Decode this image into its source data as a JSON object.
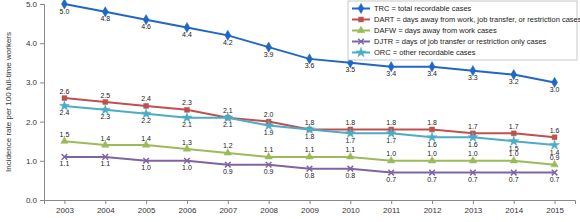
{
  "chart_data": {
    "type": "line",
    "y_label": "Incidence rate per 100 full-time workers",
    "categories": [
      "2003",
      "2004",
      "2005",
      "2006",
      "2007",
      "2008",
      "2009",
      "2010",
      "2011",
      "2012",
      "2013",
      "2014",
      "2015"
    ],
    "ylim": [
      0,
      5
    ],
    "yticks": [
      {
        "value": 0,
        "label": "0.0"
      },
      {
        "value": 1,
        "label": "1.0"
      },
      {
        "value": 2,
        "label": "2.0"
      },
      {
        "value": 3,
        "label": "3.0"
      },
      {
        "value": 4,
        "label": "4.0"
      },
      {
        "value": 5,
        "label": "5.0"
      }
    ],
    "grid": false,
    "legend": "upper right",
    "data_labels": true,
    "series": [
      {
        "name": "TRC = total recordable cases",
        "color": "#2167c4",
        "marker": "diamond",
        "values": [
          5.0,
          4.8,
          4.6,
          4.4,
          4.2,
          3.9,
          3.6,
          3.5,
          3.4,
          3.4,
          3.3,
          3.2,
          3.0
        ],
        "value_labels": [
          "5.0",
          "4.8",
          "4.6",
          "4.4",
          "4.2",
          "3.9",
          "3.6",
          "3.5",
          "3.4",
          "3.4",
          "3.3",
          "3.2",
          "3.0"
        ]
      },
      {
        "name": "DART = days away from work, job transfer, or restriction cases",
        "color": "#c0504d",
        "marker": "square",
        "values": [
          2.6,
          2.5,
          2.4,
          2.3,
          2.1,
          2.0,
          1.8,
          1.8,
          1.8,
          1.8,
          1.7,
          1.7,
          1.6
        ],
        "value_labels": [
          "2.6",
          "2.5",
          "2.4",
          "2.3",
          "2.1",
          "2.0",
          "1.8",
          "1.8",
          "1.8",
          "1.8",
          "1.7",
          "1.7",
          "1.6"
        ]
      },
      {
        "name": "DAFW = days away from work cases",
        "color": "#9bbb59",
        "marker": "triangle",
        "values": [
          1.5,
          1.4,
          1.4,
          1.3,
          1.2,
          1.1,
          1.1,
          1.1,
          1.0,
          1.0,
          1.0,
          1.0,
          0.9
        ],
        "value_labels": [
          "1.5",
          "1.4",
          "1.4",
          "1.3",
          "1.2",
          "1.1",
          "1.1",
          "1.1",
          "1.0",
          "1.0",
          "1.0",
          "1.0",
          "0.9"
        ]
      },
      {
        "name": "DJTR = days of job transfer or restriction only cases",
        "color": "#8064a2",
        "marker": "x",
        "values": [
          1.1,
          1.1,
          1.0,
          1.0,
          0.9,
          0.9,
          0.8,
          0.8,
          0.7,
          0.7,
          0.7,
          0.7,
          0.7
        ],
        "value_labels": [
          "1.1",
          "1.1",
          "1.0",
          "1.0",
          "0.9",
          "0.9",
          "0.8",
          "0.8",
          "0.7",
          "0.7",
          "0.7",
          "0.7",
          "0.7"
        ]
      },
      {
        "name": "ORC = other recordable cases",
        "color": "#4bacc6",
        "marker": "star",
        "values": [
          2.4,
          2.3,
          2.2,
          2.1,
          2.1,
          1.9,
          1.8,
          1.7,
          1.7,
          1.6,
          1.6,
          1.5,
          1.4
        ],
        "value_labels": [
          "2.4",
          "2.3",
          "2.2",
          "2.1",
          "2.1",
          "1.9",
          "1.8",
          "1.7",
          "1.7",
          "1.6",
          "1.6",
          "1.5",
          "1.4"
        ]
      }
    ]
  }
}
